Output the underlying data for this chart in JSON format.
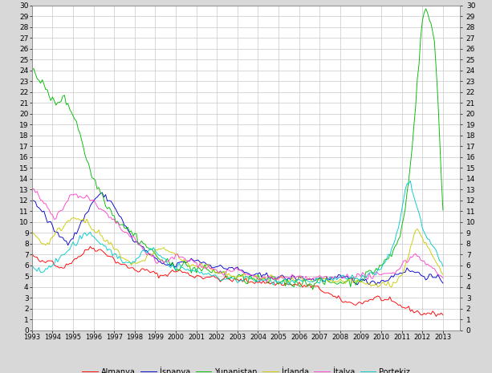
{
  "xlim_left": 1993.0,
  "xlim_right": 2013.83,
  "ylim_bottom": 0,
  "ylim_top": 30,
  "yticks": [
    0,
    1,
    2,
    3,
    4,
    5,
    6,
    7,
    8,
    9,
    10,
    11,
    12,
    13,
    14,
    15,
    16,
    17,
    18,
    19,
    20,
    21,
    22,
    23,
    24,
    25,
    26,
    27,
    28,
    29,
    30
  ],
  "xtick_years": [
    1993,
    1994,
    1995,
    1996,
    1997,
    1998,
    1999,
    2000,
    2001,
    2002,
    2003,
    2004,
    2005,
    2006,
    2007,
    2008,
    2009,
    2010,
    2011,
    2012,
    2013
  ],
  "bg_color": "#FFFFFF",
  "fig_bg": "#D8D8D8",
  "grid_color": "#C8C8C8",
  "legend": [
    {
      "label": "Almanya",
      "color": "#FF0000"
    },
    {
      "label": "İspanya",
      "color": "#0000CC"
    },
    {
      "label": "Yunanistan",
      "color": "#00BB00"
    },
    {
      "label": "İrlanda",
      "color": "#CCCC00"
    },
    {
      "label": "İtalya",
      "color": "#FF44CC"
    },
    {
      "label": "Portekiz",
      "color": "#00CCCC"
    }
  ],
  "series": {
    "Almanya": {
      "color": "#FF0000",
      "base": [
        7.0,
        6.7,
        6.5,
        6.3,
        6.2,
        6.3,
        6.5,
        6.4,
        6.2,
        5.9,
        5.8,
        5.9,
        6.0,
        6.2,
        6.5,
        6.7,
        6.8,
        7.0,
        7.2,
        7.5,
        7.7,
        7.6,
        7.5,
        7.4,
        7.3,
        7.1,
        7.0,
        6.8,
        6.5,
        6.3,
        6.2,
        6.0,
        5.9,
        5.8,
        5.7,
        5.6,
        5.5,
        5.6,
        5.5,
        5.5,
        5.4,
        5.3,
        5.2,
        5.1,
        5.0,
        5.1,
        5.2,
        5.3,
        5.4,
        5.5,
        5.5,
        5.4,
        5.3,
        5.2,
        5.1,
        5.0,
        5.0,
        5.0,
        4.9,
        4.9,
        5.0,
        4.9,
        4.8,
        4.8,
        4.7,
        4.7,
        4.7,
        4.7,
        4.6,
        4.6,
        4.6,
        4.6,
        4.6,
        4.5,
        4.5,
        4.5,
        4.5,
        4.5,
        4.4,
        4.4,
        4.4,
        4.4,
        4.3,
        4.3,
        4.3,
        4.3,
        4.3,
        4.2,
        4.2,
        4.2,
        4.2,
        4.2,
        4.1,
        4.1,
        4.1,
        4.0,
        4.0,
        3.9,
        3.8,
        3.7,
        3.5,
        3.4,
        3.2,
        3.0,
        2.9,
        2.8,
        2.7,
        2.6,
        2.5,
        2.5,
        2.5,
        2.5,
        2.5,
        2.6,
        2.7,
        2.8,
        2.9,
        3.0,
        3.0,
        2.9,
        2.8,
        2.7,
        2.6,
        2.5,
        2.4,
        2.3,
        2.2,
        2.1,
        2.0,
        1.9,
        1.8,
        1.7,
        1.6,
        1.5,
        1.5,
        1.6,
        1.5,
        1.5,
        1.5,
        1.5,
        1.5
      ]
    },
    "Ispanya": {
      "color": "#0000CC",
      "base": [
        12.0,
        11.8,
        11.5,
        11.2,
        10.8,
        10.2,
        9.8,
        9.5,
        9.2,
        8.8,
        8.5,
        8.4,
        8.3,
        8.4,
        8.6,
        9.0,
        9.5,
        10.0,
        10.5,
        11.0,
        11.5,
        12.0,
        12.3,
        12.5,
        12.5,
        12.3,
        12.1,
        11.8,
        11.5,
        11.0,
        10.5,
        10.0,
        9.5,
        9.0,
        8.5,
        8.2,
        8.0,
        7.8,
        7.5,
        7.3,
        7.0,
        6.8,
        6.5,
        6.3,
        6.2,
        6.1,
        6.0,
        6.0,
        6.0,
        6.0,
        6.1,
        6.2,
        6.3,
        6.4,
        6.5,
        6.5,
        6.5,
        6.4,
        6.3,
        6.2,
        6.1,
        6.0,
        6.0,
        5.9,
        5.8,
        5.7,
        5.7,
        5.8,
        5.8,
        5.7,
        5.6,
        5.5,
        5.4,
        5.3,
        5.2,
        5.1,
        5.0,
        5.0,
        5.0,
        5.0,
        5.0,
        5.0,
        5.0,
        4.9,
        4.9,
        4.8,
        4.8,
        4.8,
        4.8,
        4.8,
        4.8,
        4.8,
        4.8,
        4.8,
        4.7,
        4.7,
        4.7,
        4.7,
        4.7,
        4.7,
        4.7,
        4.7,
        4.7,
        4.7,
        4.8,
        4.8,
        4.8,
        4.8,
        4.8,
        4.7,
        4.6,
        4.5,
        4.5,
        4.5,
        4.5,
        4.5,
        4.5,
        4.5,
        4.5,
        4.5,
        4.6,
        4.7,
        4.8,
        5.0,
        5.2,
        5.3,
        5.4,
        5.5,
        5.5,
        5.5,
        5.4,
        5.3,
        5.2,
        5.1,
        5.0,
        5.0,
        4.9,
        4.8,
        4.7,
        4.6,
        4.5
      ]
    },
    "Yunanistan": {
      "color": "#00BB00",
      "base": [
        24.5,
        24.0,
        23.5,
        23.0,
        22.5,
        22.0,
        21.5,
        21.2,
        21.0,
        21.2,
        21.5,
        21.3,
        21.0,
        20.5,
        20.0,
        19.5,
        18.5,
        17.5,
        16.5,
        15.5,
        14.5,
        14.0,
        13.5,
        13.0,
        12.5,
        12.0,
        11.5,
        11.0,
        10.5,
        10.2,
        10.0,
        9.8,
        9.5,
        9.2,
        9.0,
        8.8,
        8.5,
        8.2,
        8.0,
        7.8,
        7.5,
        7.2,
        7.0,
        6.8,
        6.5,
        6.3,
        6.1,
        6.0,
        6.0,
        6.0,
        6.0,
        6.0,
        6.0,
        5.9,
        5.8,
        5.7,
        5.6,
        5.6,
        5.5,
        5.5,
        5.5,
        5.5,
        5.5,
        5.4,
        5.3,
        5.2,
        5.1,
        5.0,
        4.9,
        4.8,
        4.8,
        4.8,
        4.7,
        4.7,
        4.7,
        4.7,
        4.7,
        4.6,
        4.6,
        4.6,
        4.5,
        4.5,
        4.5,
        4.5,
        4.5,
        4.5,
        4.4,
        4.4,
        4.4,
        4.4,
        4.4,
        4.4,
        4.4,
        4.4,
        4.4,
        4.4,
        4.4,
        4.4,
        4.4,
        4.4,
        4.4,
        4.4,
        4.4,
        4.4,
        4.4,
        4.5,
        4.5,
        4.5,
        4.5,
        4.6,
        4.6,
        4.7,
        4.8,
        4.9,
        5.0,
        5.2,
        5.4,
        5.6,
        5.8,
        6.0,
        6.3,
        6.5,
        6.8,
        7.2,
        7.8,
        8.5,
        9.5,
        11.0,
        13.0,
        16.0,
        18.5,
        22.0,
        25.5,
        28.5,
        30.0,
        29.0,
        28.0,
        27.0,
        23.0,
        17.0,
        11.5
      ]
    },
    "Irlanda": {
      "color": "#CCCC00",
      "base": [
        9.0,
        8.8,
        8.5,
        8.2,
        8.0,
        8.0,
        8.2,
        8.5,
        8.8,
        9.2,
        9.5,
        9.8,
        10.0,
        10.2,
        10.5,
        10.5,
        10.5,
        10.3,
        10.0,
        9.8,
        9.5,
        9.2,
        9.0,
        8.8,
        8.5,
        8.2,
        8.0,
        7.8,
        7.5,
        7.3,
        7.0,
        6.8,
        6.5,
        6.3,
        6.2,
        6.1,
        6.0,
        6.2,
        6.5,
        6.8,
        7.0,
        7.2,
        7.3,
        7.4,
        7.5,
        7.5,
        7.4,
        7.3,
        7.2,
        7.0,
        6.8,
        6.5,
        6.3,
        6.1,
        6.0,
        5.9,
        5.8,
        5.8,
        5.8,
        5.8,
        5.8,
        5.7,
        5.6,
        5.5,
        5.4,
        5.3,
        5.2,
        5.1,
        5.0,
        4.9,
        4.9,
        4.9,
        4.9,
        4.9,
        4.9,
        4.8,
        4.8,
        4.8,
        4.8,
        4.8,
        4.8,
        4.8,
        4.8,
        4.7,
        4.7,
        4.7,
        4.7,
        4.7,
        4.6,
        4.6,
        4.6,
        4.6,
        4.6,
        4.6,
        4.5,
        4.5,
        4.5,
        4.5,
        4.5,
        4.5,
        4.5,
        4.5,
        4.5,
        4.5,
        4.5,
        4.5,
        4.5,
        4.5,
        4.5,
        4.4,
        4.4,
        4.4,
        4.4,
        4.3,
        4.3,
        4.2,
        4.2,
        4.2,
        4.2,
        4.2,
        4.2,
        4.2,
        4.3,
        4.4,
        4.5,
        4.8,
        5.2,
        5.8,
        6.5,
        7.5,
        9.0,
        9.5,
        9.0,
        8.5,
        8.0,
        7.5,
        7.0,
        6.5,
        6.0,
        5.5,
        5.0
      ]
    },
    "Italya": {
      "color": "#FF44CC",
      "base": [
        13.0,
        12.8,
        12.5,
        12.2,
        11.8,
        11.5,
        11.2,
        10.8,
        10.5,
        10.8,
        11.0,
        11.5,
        12.0,
        12.3,
        12.5,
        12.6,
        12.5,
        12.4,
        12.3,
        12.2,
        12.0,
        11.8,
        11.5,
        11.2,
        11.0,
        10.8,
        10.5,
        10.2,
        10.0,
        9.8,
        9.5,
        9.2,
        9.0,
        8.8,
        8.5,
        8.2,
        8.0,
        7.8,
        7.5,
        7.2,
        7.0,
        6.8,
        6.5,
        6.3,
        6.2,
        6.2,
        6.3,
        6.5,
        6.7,
        6.8,
        6.8,
        6.7,
        6.6,
        6.5,
        6.4,
        6.3,
        6.2,
        6.1,
        6.0,
        5.9,
        5.8,
        5.7,
        5.6,
        5.5,
        5.4,
        5.3,
        5.3,
        5.4,
        5.5,
        5.5,
        5.5,
        5.4,
        5.3,
        5.2,
        5.1,
        5.0,
        4.9,
        4.8,
        4.8,
        4.8,
        4.8,
        4.8,
        4.8,
        4.8,
        4.8,
        4.8,
        4.8,
        4.8,
        4.8,
        4.8,
        4.8,
        4.8,
        4.8,
        4.8,
        4.8,
        4.8,
        4.8,
        4.8,
        4.8,
        4.8,
        4.8,
        4.8,
        4.8,
        4.8,
        4.8,
        4.9,
        5.0,
        5.0,
        5.0,
        5.0,
        5.0,
        5.0,
        5.0,
        5.0,
        5.0,
        5.0,
        5.0,
        5.0,
        5.0,
        5.0,
        5.1,
        5.2,
        5.3,
        5.4,
        5.5,
        5.8,
        6.0,
        6.3,
        6.5,
        6.7,
        7.0,
        7.0,
        6.8,
        6.5,
        6.3,
        6.0,
        5.8,
        5.5,
        5.3,
        5.0,
        4.8
      ]
    },
    "Portekiz": {
      "color": "#00CCCC",
      "base": [
        6.0,
        5.8,
        5.6,
        5.5,
        5.5,
        5.6,
        5.8,
        6.0,
        6.3,
        6.5,
        6.8,
        7.0,
        7.3,
        7.5,
        7.8,
        8.0,
        8.3,
        8.5,
        8.7,
        8.8,
        8.8,
        8.7,
        8.5,
        8.2,
        8.0,
        7.8,
        7.5,
        7.3,
        7.0,
        6.8,
        6.5,
        6.3,
        6.2,
        6.2,
        6.3,
        6.5,
        6.8,
        7.0,
        7.2,
        7.3,
        7.4,
        7.3,
        7.2,
        7.0,
        6.8,
        6.5,
        6.3,
        6.1,
        6.0,
        5.9,
        5.8,
        5.7,
        5.6,
        5.5,
        5.5,
        5.5,
        5.5,
        5.4,
        5.3,
        5.2,
        5.1,
        5.0,
        4.9,
        4.8,
        4.8,
        4.8,
        4.8,
        4.8,
        4.8,
        4.7,
        4.7,
        4.7,
        4.7,
        4.7,
        4.7,
        4.6,
        4.6,
        4.6,
        4.6,
        4.6,
        4.6,
        4.6,
        4.6,
        4.6,
        4.6,
        4.6,
        4.6,
        4.6,
        4.6,
        4.6,
        4.6,
        4.6,
        4.6,
        4.6,
        4.6,
        4.6,
        4.6,
        4.6,
        4.6,
        4.6,
        4.6,
        4.6,
        4.6,
        4.6,
        4.7,
        4.8,
        4.8,
        4.8,
        4.8,
        4.8,
        4.8,
        4.8,
        4.9,
        5.0,
        5.0,
        5.1,
        5.2,
        5.3,
        5.5,
        5.7,
        6.0,
        6.5,
        7.0,
        7.8,
        8.5,
        9.5,
        11.0,
        13.0,
        14.0,
        13.5,
        12.5,
        11.5,
        10.5,
        9.5,
        8.8,
        8.3,
        7.8,
        7.5,
        7.0,
        6.5,
        6.0
      ]
    }
  }
}
